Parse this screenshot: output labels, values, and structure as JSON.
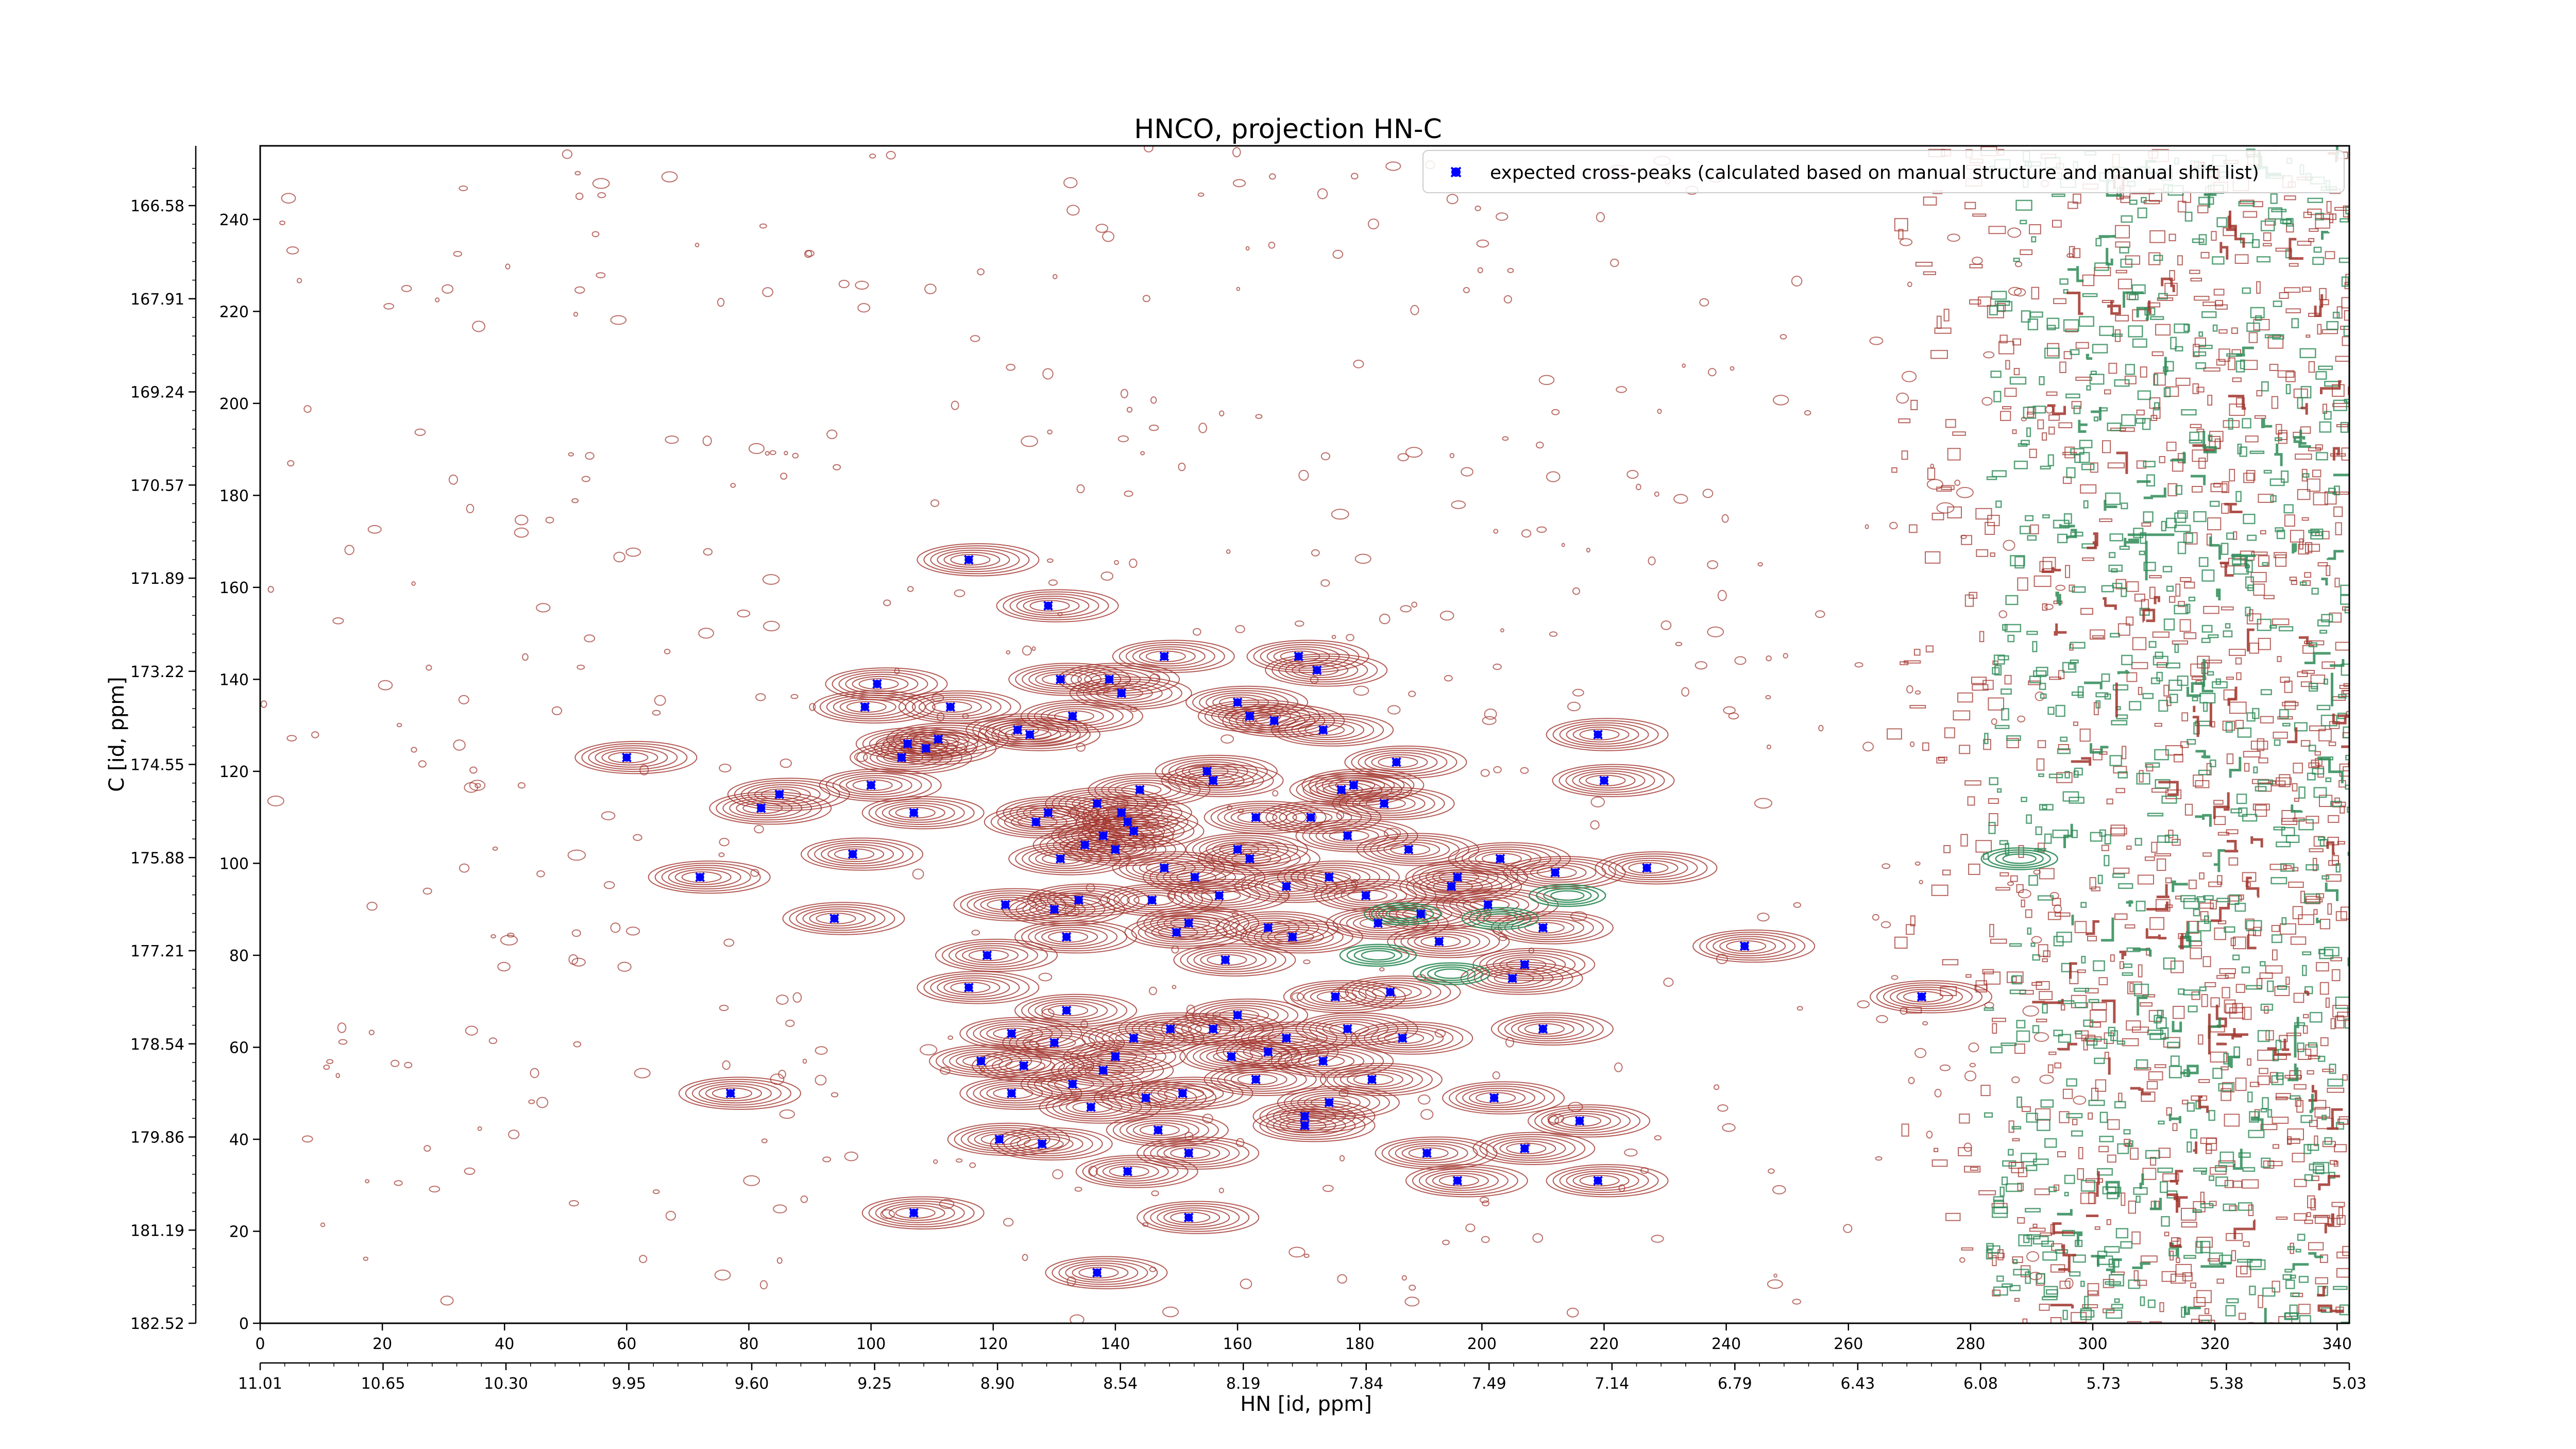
{
  "chart_data": {
    "type": "scatter",
    "title": "HNCO, projection HN-C",
    "xlabel": "HN [id, ppm]",
    "ylabel": "C [id, ppm]",
    "colors": {
      "contour_positive": "#a0322a",
      "contour_negative": "#2e8b57",
      "marker": "#0000ff",
      "axes": "#000000"
    },
    "x_index_axis": {
      "range": [
        0,
        342
      ],
      "ticks": [
        "0",
        "20",
        "40",
        "60",
        "80",
        "100",
        "120",
        "140",
        "160",
        "180",
        "200",
        "220",
        "240",
        "260",
        "280",
        "300",
        "320",
        "340"
      ]
    },
    "x_ppm_axis": {
      "ticks": [
        "11.01",
        "10.65",
        "10.30",
        "9.95",
        "9.60",
        "9.25",
        "8.90",
        "8.54",
        "8.19",
        "7.84",
        "7.49",
        "7.14",
        "6.79",
        "6.43",
        "6.08",
        "5.73",
        "5.38",
        "5.03"
      ]
    },
    "y_index_axis": {
      "range": [
        0,
        256
      ],
      "ticks": [
        "0",
        "20",
        "40",
        "60",
        "80",
        "100",
        "120",
        "140",
        "160",
        "180",
        "200",
        "220",
        "240"
      ]
    },
    "y_ppm_axis": {
      "ticks": [
        "182.52",
        "181.19",
        "179.86",
        "178.54",
        "177.21",
        "175.88",
        "174.55",
        "173.22",
        "171.89",
        "170.57",
        "169.24",
        "167.91",
        "166.58"
      ]
    },
    "grid": false,
    "legend": {
      "position": "top-right",
      "entry": "expected cross-peaks (calculated based on manual structure and manual shift list)"
    },
    "series": [
      {
        "name": "expected cross-peaks (calculated based on manual structure and manual shift list)",
        "points": [
          {
            "x": 116,
            "y": 166
          },
          {
            "x": 129,
            "y": 156
          },
          {
            "x": 60,
            "y": 123
          },
          {
            "x": 72,
            "y": 97
          },
          {
            "x": 82,
            "y": 112
          },
          {
            "x": 85,
            "y": 115
          },
          {
            "x": 94,
            "y": 88
          },
          {
            "x": 97,
            "y": 102
          },
          {
            "x": 99,
            "y": 134
          },
          {
            "x": 100,
            "y": 117
          },
          {
            "x": 101,
            "y": 139
          },
          {
            "x": 105,
            "y": 123
          },
          {
            "x": 106,
            "y": 126
          },
          {
            "x": 107,
            "y": 111
          },
          {
            "x": 109,
            "y": 125
          },
          {
            "x": 111,
            "y": 127
          },
          {
            "x": 113,
            "y": 134
          },
          {
            "x": 124,
            "y": 129
          },
          {
            "x": 126,
            "y": 128
          },
          {
            "x": 129,
            "y": 111
          },
          {
            "x": 131,
            "y": 140
          },
          {
            "x": 133,
            "y": 132
          },
          {
            "x": 139,
            "y": 140
          },
          {
            "x": 141,
            "y": 137
          },
          {
            "x": 148,
            "y": 145
          },
          {
            "x": 160,
            "y": 135
          },
          {
            "x": 162,
            "y": 132
          },
          {
            "x": 166,
            "y": 131
          },
          {
            "x": 170,
            "y": 145
          },
          {
            "x": 173,
            "y": 142
          },
          {
            "x": 174,
            "y": 129
          },
          {
            "x": 179,
            "y": 117
          },
          {
            "x": 184,
            "y": 113
          },
          {
            "x": 186,
            "y": 122
          },
          {
            "x": 116,
            "y": 73
          },
          {
            "x": 119,
            "y": 80
          },
          {
            "x": 122,
            "y": 91
          },
          {
            "x": 123,
            "y": 63
          },
          {
            "x": 125,
            "y": 56
          },
          {
            "x": 127,
            "y": 109
          },
          {
            "x": 130,
            "y": 90
          },
          {
            "x": 131,
            "y": 101
          },
          {
            "x": 132,
            "y": 84
          },
          {
            "x": 134,
            "y": 92
          },
          {
            "x": 135,
            "y": 104
          },
          {
            "x": 137,
            "y": 113
          },
          {
            "x": 138,
            "y": 106
          },
          {
            "x": 140,
            "y": 103
          },
          {
            "x": 141,
            "y": 111
          },
          {
            "x": 142,
            "y": 109
          },
          {
            "x": 143,
            "y": 107
          },
          {
            "x": 144,
            "y": 116
          },
          {
            "x": 146,
            "y": 92
          },
          {
            "x": 148,
            "y": 99
          },
          {
            "x": 150,
            "y": 85
          },
          {
            "x": 152,
            "y": 87
          },
          {
            "x": 153,
            "y": 97
          },
          {
            "x": 155,
            "y": 120
          },
          {
            "x": 156,
            "y": 118
          },
          {
            "x": 157,
            "y": 93
          },
          {
            "x": 158,
            "y": 79
          },
          {
            "x": 160,
            "y": 103
          },
          {
            "x": 162,
            "y": 101
          },
          {
            "x": 163,
            "y": 110
          },
          {
            "x": 165,
            "y": 86
          },
          {
            "x": 168,
            "y": 95
          },
          {
            "x": 169,
            "y": 84
          },
          {
            "x": 172,
            "y": 110
          },
          {
            "x": 175,
            "y": 97
          },
          {
            "x": 177,
            "y": 116
          },
          {
            "x": 178,
            "y": 106
          },
          {
            "x": 181,
            "y": 93
          },
          {
            "x": 183,
            "y": 87
          },
          {
            "x": 188,
            "y": 103
          },
          {
            "x": 190,
            "y": 89
          },
          {
            "x": 193,
            "y": 83
          },
          {
            "x": 195,
            "y": 95
          },
          {
            "x": 196,
            "y": 97
          },
          {
            "x": 201,
            "y": 91
          },
          {
            "x": 203,
            "y": 101
          },
          {
            "x": 205,
            "y": 75
          },
          {
            "x": 207,
            "y": 78
          },
          {
            "x": 210,
            "y": 86
          },
          {
            "x": 212,
            "y": 98
          },
          {
            "x": 219,
            "y": 128
          },
          {
            "x": 220,
            "y": 118
          },
          {
            "x": 227,
            "y": 99
          },
          {
            "x": 243,
            "y": 82
          },
          {
            "x": 118,
            "y": 57
          },
          {
            "x": 121,
            "y": 40
          },
          {
            "x": 123,
            "y": 50
          },
          {
            "x": 128,
            "y": 39
          },
          {
            "x": 130,
            "y": 61
          },
          {
            "x": 132,
            "y": 68
          },
          {
            "x": 133,
            "y": 52
          },
          {
            "x": 136,
            "y": 47
          },
          {
            "x": 138,
            "y": 55
          },
          {
            "x": 140,
            "y": 58
          },
          {
            "x": 143,
            "y": 62
          },
          {
            "x": 145,
            "y": 49
          },
          {
            "x": 147,
            "y": 42
          },
          {
            "x": 149,
            "y": 64
          },
          {
            "x": 151,
            "y": 50
          },
          {
            "x": 152,
            "y": 37
          },
          {
            "x": 156,
            "y": 64
          },
          {
            "x": 159,
            "y": 58
          },
          {
            "x": 160,
            "y": 67
          },
          {
            "x": 163,
            "y": 53
          },
          {
            "x": 165,
            "y": 59
          },
          {
            "x": 168,
            "y": 62
          },
          {
            "x": 171,
            "y": 45
          },
          {
            "x": 174,
            "y": 57
          },
          {
            "x": 176,
            "y": 71
          },
          {
            "x": 178,
            "y": 64
          },
          {
            "x": 182,
            "y": 53
          },
          {
            "x": 185,
            "y": 72
          },
          {
            "x": 187,
            "y": 62
          },
          {
            "x": 191,
            "y": 37
          },
          {
            "x": 196,
            "y": 31
          },
          {
            "x": 202,
            "y": 49
          },
          {
            "x": 207,
            "y": 38
          },
          {
            "x": 210,
            "y": 64
          },
          {
            "x": 216,
            "y": 44
          },
          {
            "x": 219,
            "y": 31
          },
          {
            "x": 77,
            "y": 50
          },
          {
            "x": 107,
            "y": 24
          },
          {
            "x": 137,
            "y": 11
          },
          {
            "x": 142,
            "y": 33
          },
          {
            "x": 152,
            "y": 23
          },
          {
            "x": 171,
            "y": 43
          },
          {
            "x": 175,
            "y": 48
          },
          {
            "x": 272,
            "y": 71
          }
        ]
      }
    ]
  }
}
